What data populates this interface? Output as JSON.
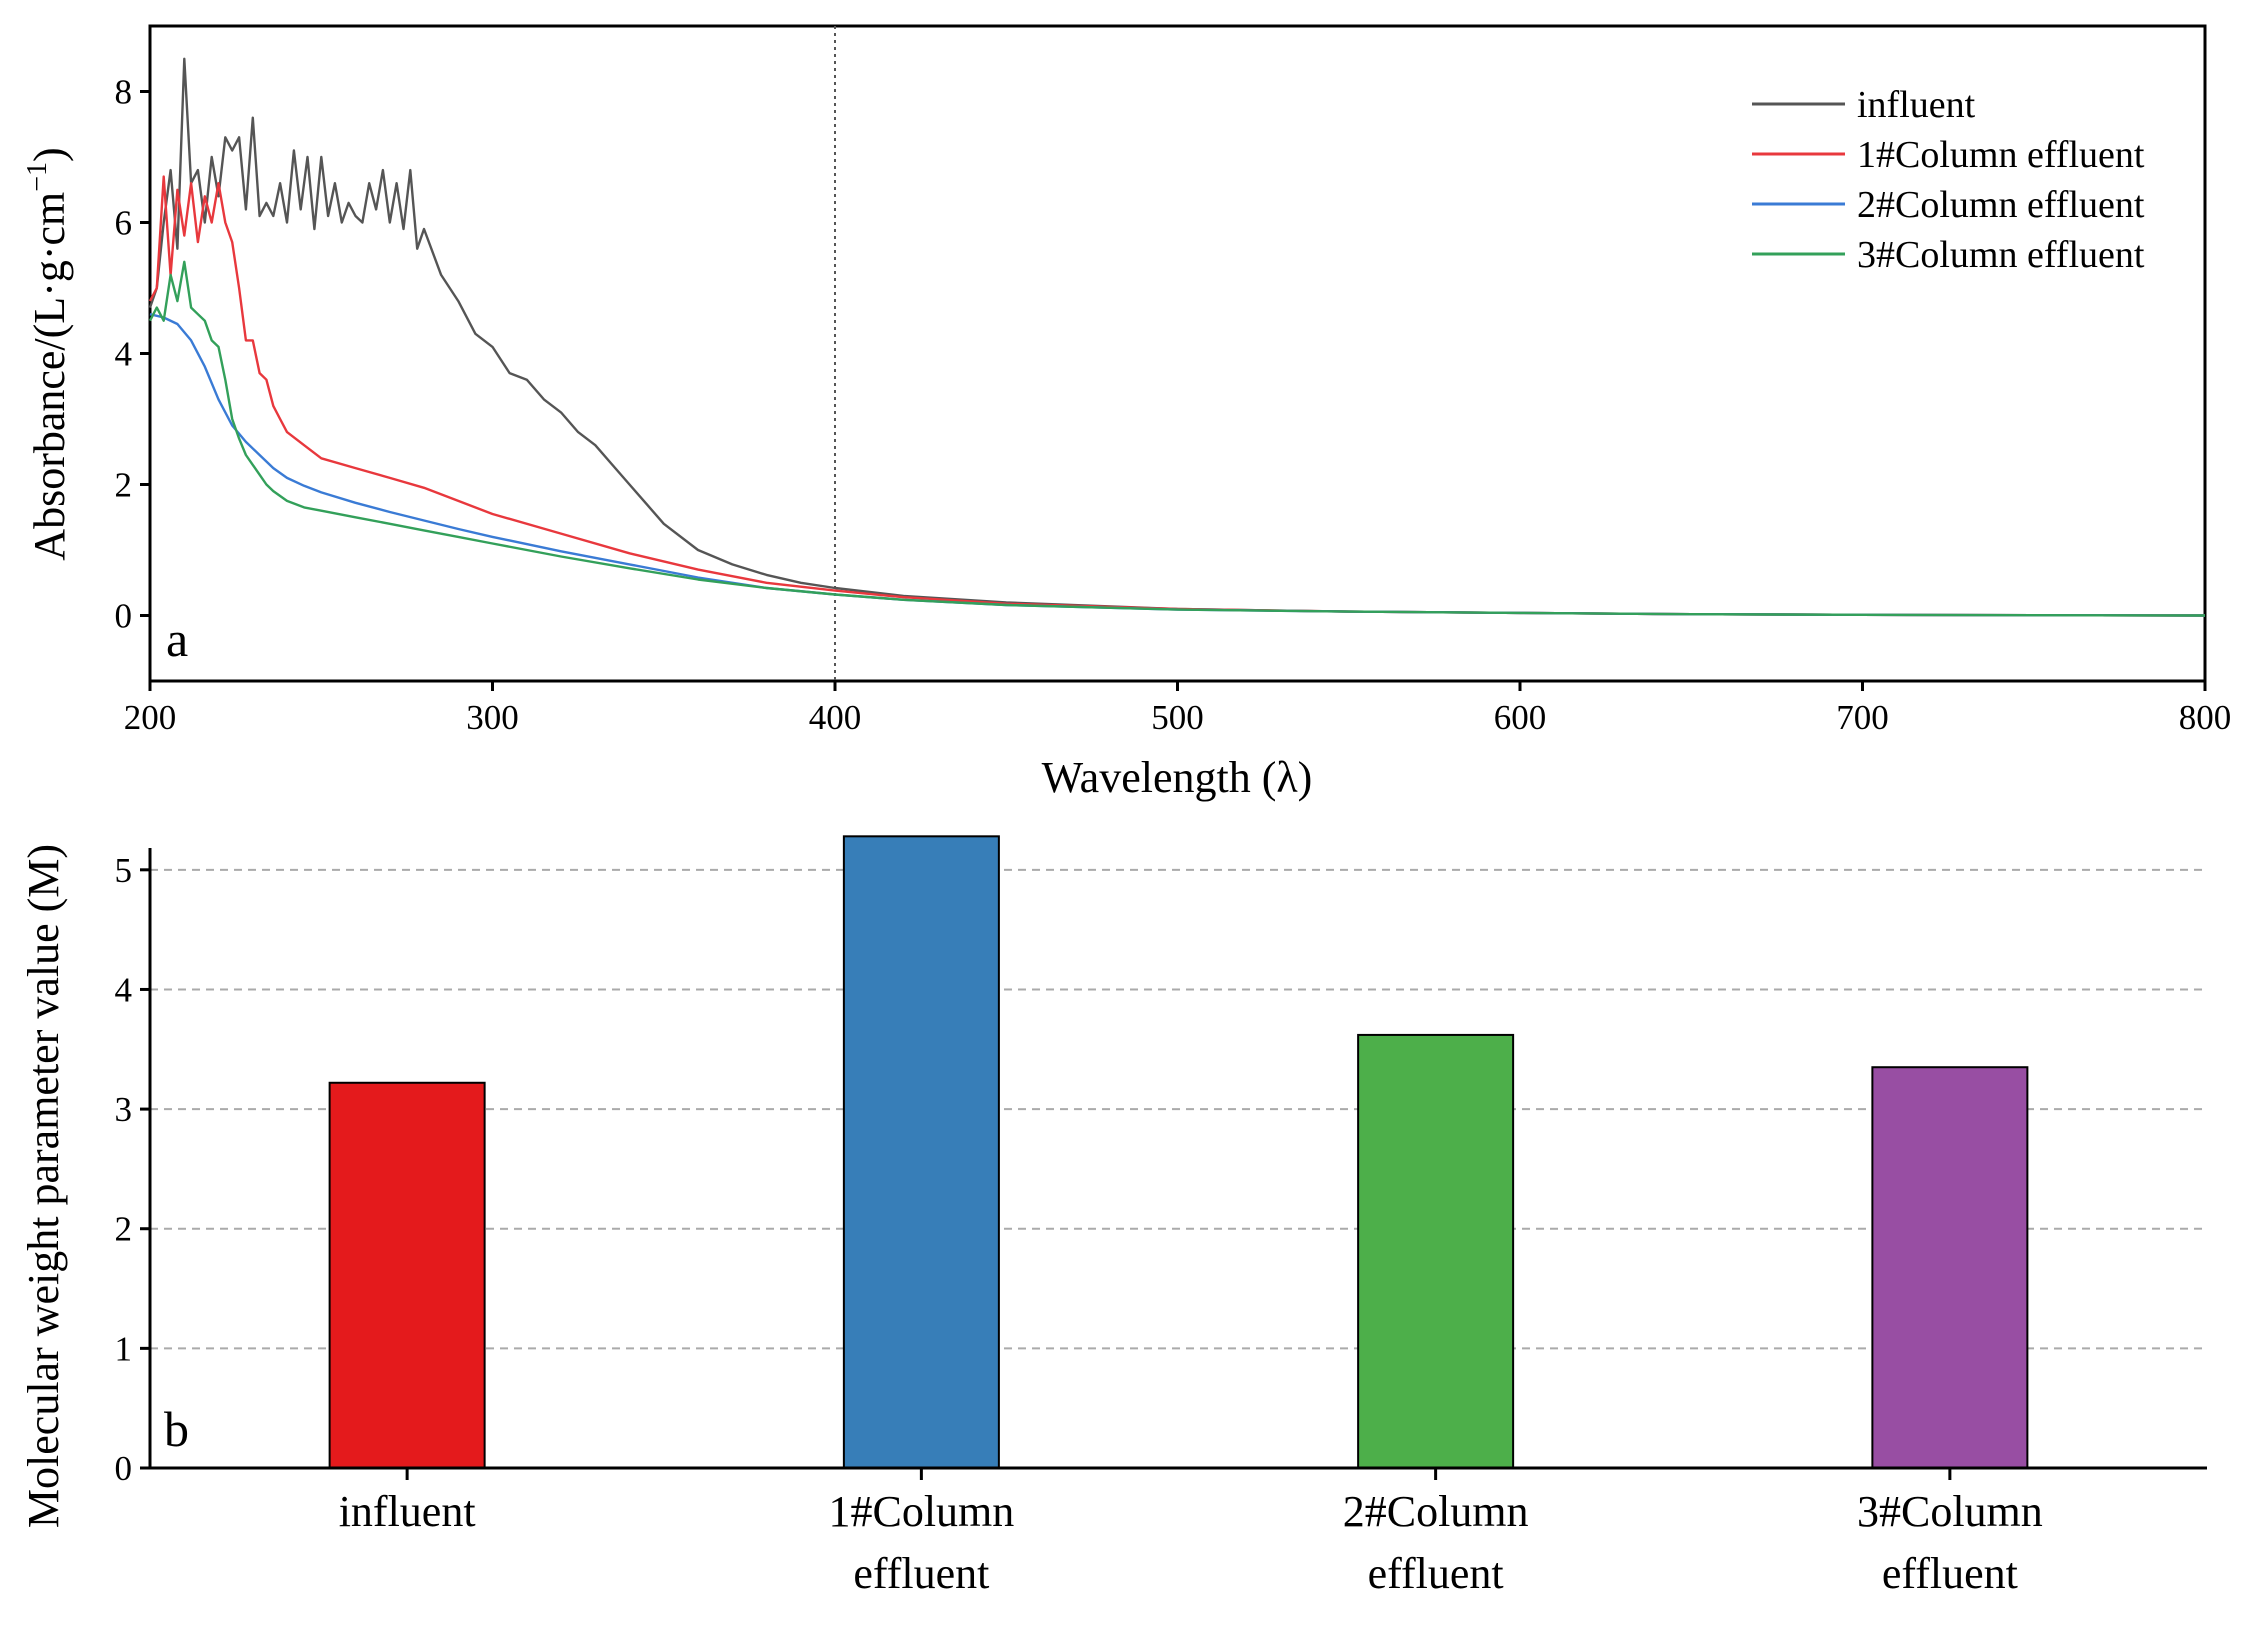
{
  "chart_data": [
    {
      "panel": "a",
      "type": "line",
      "xlabel": "Wavelength (λ)",
      "ylabel": "Absorbance/(L·g·cm⁻¹)",
      "ylabel_main": "Absorbance/(L·g·cm",
      "ylabel_sup": "−1",
      "ylabel_close": ")",
      "xlim": [
        200,
        800
      ],
      "ylim": [
        -1,
        9
      ],
      "xticks": [
        200,
        300,
        400,
        500,
        600,
        700,
        800
      ],
      "yticks": [
        0,
        2,
        4,
        6,
        8
      ],
      "reference_line_x": 400,
      "legend_position": "top-right",
      "series": [
        {
          "name": "influent",
          "color": "#555555",
          "x": [
            200,
            202,
            204,
            206,
            208,
            210,
            212,
            214,
            216,
            218,
            220,
            222,
            224,
            226,
            228,
            230,
            232,
            234,
            236,
            238,
            240,
            242,
            244,
            246,
            248,
            250,
            252,
            254,
            256,
            258,
            260,
            262,
            264,
            266,
            268,
            270,
            272,
            274,
            276,
            278,
            280,
            285,
            290,
            295,
            300,
            305,
            310,
            315,
            320,
            325,
            330,
            335,
            340,
            345,
            350,
            360,
            370,
            380,
            390,
            400,
            420,
            450,
            500,
            550,
            600,
            650,
            700,
            750,
            800
          ],
          "values": [
            4.7,
            5.0,
            6.0,
            6.8,
            5.6,
            8.5,
            6.6,
            6.8,
            6.0,
            7.0,
            6.4,
            7.3,
            7.1,
            7.3,
            6.2,
            7.6,
            6.1,
            6.3,
            6.1,
            6.6,
            6.0,
            7.1,
            6.2,
            7.0,
            5.9,
            7.0,
            6.1,
            6.6,
            6.0,
            6.3,
            6.1,
            6.0,
            6.6,
            6.2,
            6.8,
            6.0,
            6.6,
            5.9,
            6.8,
            5.6,
            5.9,
            5.2,
            4.8,
            4.3,
            4.1,
            3.7,
            3.6,
            3.3,
            3.1,
            2.8,
            2.6,
            2.3,
            2.0,
            1.7,
            1.4,
            1.0,
            0.78,
            0.62,
            0.5,
            0.42,
            0.3,
            0.2,
            0.1,
            0.06,
            0.04,
            0.02,
            0.01,
            0.005,
            0.0
          ]
        },
        {
          "name": "1#Column effluent",
          "color": "#e8383d",
          "x": [
            200,
            202,
            204,
            206,
            208,
            210,
            212,
            214,
            216,
            218,
            220,
            222,
            224,
            226,
            228,
            230,
            232,
            234,
            236,
            238,
            240,
            245,
            250,
            260,
            270,
            280,
            290,
            300,
            320,
            340,
            360,
            380,
            400,
            420,
            450,
            500,
            550,
            600,
            650,
            700,
            750,
            800
          ],
          "values": [
            4.8,
            5.0,
            6.7,
            5.2,
            6.5,
            5.8,
            6.6,
            5.7,
            6.4,
            6.0,
            6.6,
            6.0,
            5.7,
            5.0,
            4.2,
            4.2,
            3.7,
            3.6,
            3.2,
            3.0,
            2.8,
            2.6,
            2.4,
            2.25,
            2.1,
            1.95,
            1.75,
            1.55,
            1.25,
            0.95,
            0.7,
            0.5,
            0.38,
            0.28,
            0.18,
            0.1,
            0.06,
            0.04,
            0.02,
            0.01,
            0.005,
            0.0
          ]
        },
        {
          "name": "2#Column effluent",
          "color": "#3a7bd5",
          "x": [
            200,
            204,
            208,
            212,
            216,
            220,
            224,
            228,
            232,
            236,
            240,
            245,
            250,
            260,
            270,
            280,
            290,
            300,
            320,
            340,
            360,
            380,
            400,
            420,
            450,
            500,
            550,
            600,
            650,
            700,
            750,
            800
          ],
          "values": [
            4.6,
            4.55,
            4.45,
            4.2,
            3.8,
            3.3,
            2.9,
            2.65,
            2.45,
            2.25,
            2.1,
            1.98,
            1.88,
            1.72,
            1.58,
            1.45,
            1.32,
            1.2,
            0.98,
            0.78,
            0.58,
            0.42,
            0.32,
            0.24,
            0.16,
            0.09,
            0.06,
            0.04,
            0.02,
            0.01,
            0.005,
            0.0
          ]
        },
        {
          "name": "3#Column effluent",
          "color": "#33a05a",
          "x": [
            200,
            202,
            204,
            206,
            208,
            210,
            212,
            214,
            216,
            218,
            220,
            222,
            224,
            226,
            228,
            230,
            232,
            234,
            236,
            240,
            245,
            250,
            260,
            270,
            280,
            290,
            300,
            320,
            340,
            360,
            380,
            400,
            420,
            450,
            500,
            550,
            600,
            650,
            700,
            750,
            800
          ],
          "values": [
            4.5,
            4.7,
            4.5,
            5.2,
            4.8,
            5.4,
            4.7,
            4.6,
            4.5,
            4.2,
            4.1,
            3.6,
            3.0,
            2.7,
            2.45,
            2.3,
            2.15,
            2.0,
            1.9,
            1.75,
            1.65,
            1.6,
            1.5,
            1.4,
            1.3,
            1.2,
            1.1,
            0.9,
            0.72,
            0.55,
            0.42,
            0.32,
            0.24,
            0.16,
            0.09,
            0.06,
            0.04,
            0.02,
            0.01,
            0.005,
            0.0
          ]
        }
      ]
    },
    {
      "panel": "b",
      "type": "bar",
      "ylabel": "Molecular weight parameter value  (M)",
      "ylim": [
        0,
        5.5
      ],
      "yticks": [
        0,
        1,
        2,
        3,
        4,
        5
      ],
      "grid": "horizontal dashed",
      "categories": [
        [
          "influent"
        ],
        [
          "1#Column",
          "effluent"
        ],
        [
          "2#Column",
          "effluent"
        ],
        [
          "3#Column",
          "effluent"
        ]
      ],
      "values": [
        3.22,
        5.28,
        3.62,
        3.35
      ],
      "colors": [
        "#e41a1c",
        "#377eb8",
        "#4daf4a",
        "#984ea3"
      ]
    }
  ]
}
